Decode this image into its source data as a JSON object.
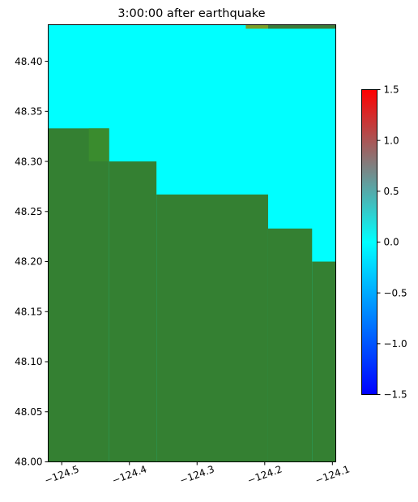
{
  "chart_data": {
    "type": "heatmap",
    "title": "3:00:00 after earthquake",
    "xlabel": "",
    "ylabel": "",
    "xlim": [
      -124.52,
      -124.095
    ],
    "ylim": [
      48.0,
      48.4365
    ],
    "x_ticks": [
      {
        "value": -124.5,
        "label": "−124.5"
      },
      {
        "value": -124.4,
        "label": "−124.4"
      },
      {
        "value": -124.3,
        "label": "−124.3"
      },
      {
        "value": -124.2,
        "label": "−124.2"
      },
      {
        "value": -124.1,
        "label": "−124.1"
      }
    ],
    "y_ticks": [
      {
        "value": 48.0,
        "label": "48.00"
      },
      {
        "value": 48.05,
        "label": "48.05"
      },
      {
        "value": 48.1,
        "label": "48.10"
      },
      {
        "value": 48.15,
        "label": "48.15"
      },
      {
        "value": 48.2,
        "label": "48.20"
      },
      {
        "value": 48.25,
        "label": "48.25"
      },
      {
        "value": 48.3,
        "label": "48.30"
      },
      {
        "value": 48.35,
        "label": "48.35"
      },
      {
        "value": 48.4,
        "label": "48.40"
      }
    ],
    "colors": {
      "water": "#00ffff",
      "land": "#348032",
      "land_highlight": "#3a8c2e",
      "surface_anomaly": "#7a9e2a",
      "surface_anomaly_dark": "#3d7a3a"
    },
    "regions": [
      {
        "kind": "water",
        "x": [
          -124.52,
          -124.095
        ],
        "y": [
          48.0,
          48.4365
        ]
      },
      {
        "kind": "land",
        "x": [
          -124.52,
          -124.43
        ],
        "y": [
          48.0,
          48.333
        ]
      },
      {
        "kind": "land_highlight",
        "x": [
          -124.46,
          -124.43
        ],
        "y": [
          48.3,
          48.333
        ]
      },
      {
        "kind": "land",
        "x": [
          -124.43,
          -124.36
        ],
        "y": [
          48.0,
          48.3
        ]
      },
      {
        "kind": "land",
        "x": [
          -124.36,
          -124.195
        ],
        "y": [
          48.0,
          48.267
        ]
      },
      {
        "kind": "land",
        "x": [
          -124.195,
          -124.13
        ],
        "y": [
          48.0,
          48.233
        ]
      },
      {
        "kind": "land",
        "x": [
          -124.13,
          -124.095
        ],
        "y": [
          48.0,
          48.2
        ]
      },
      {
        "kind": "surface_anomaly",
        "x": [
          -124.228,
          -124.195
        ],
        "y": [
          48.4325,
          48.4365
        ]
      },
      {
        "kind": "surface_anomaly_dark",
        "x": [
          -124.195,
          -124.095
        ],
        "y": [
          48.4325,
          48.4365
        ]
      }
    ],
    "colorbar": {
      "vmin": -1.5,
      "vmax": 1.5,
      "stops": [
        {
          "value": -1.5,
          "color": "#0000ff"
        },
        {
          "value": 0.0,
          "color": "#00ffff"
        },
        {
          "value": 1.5,
          "color": "#ff0000"
        }
      ],
      "ticks": [
        {
          "value": 1.5,
          "label": "1.5"
        },
        {
          "value": 1.0,
          "label": "1.0"
        },
        {
          "value": 0.5,
          "label": "0.5"
        },
        {
          "value": 0.0,
          "label": "0.0"
        },
        {
          "value": -0.5,
          "label": "−0.5"
        },
        {
          "value": -1.0,
          "label": "−1.0"
        },
        {
          "value": -1.5,
          "label": "−1.5"
        }
      ]
    }
  }
}
